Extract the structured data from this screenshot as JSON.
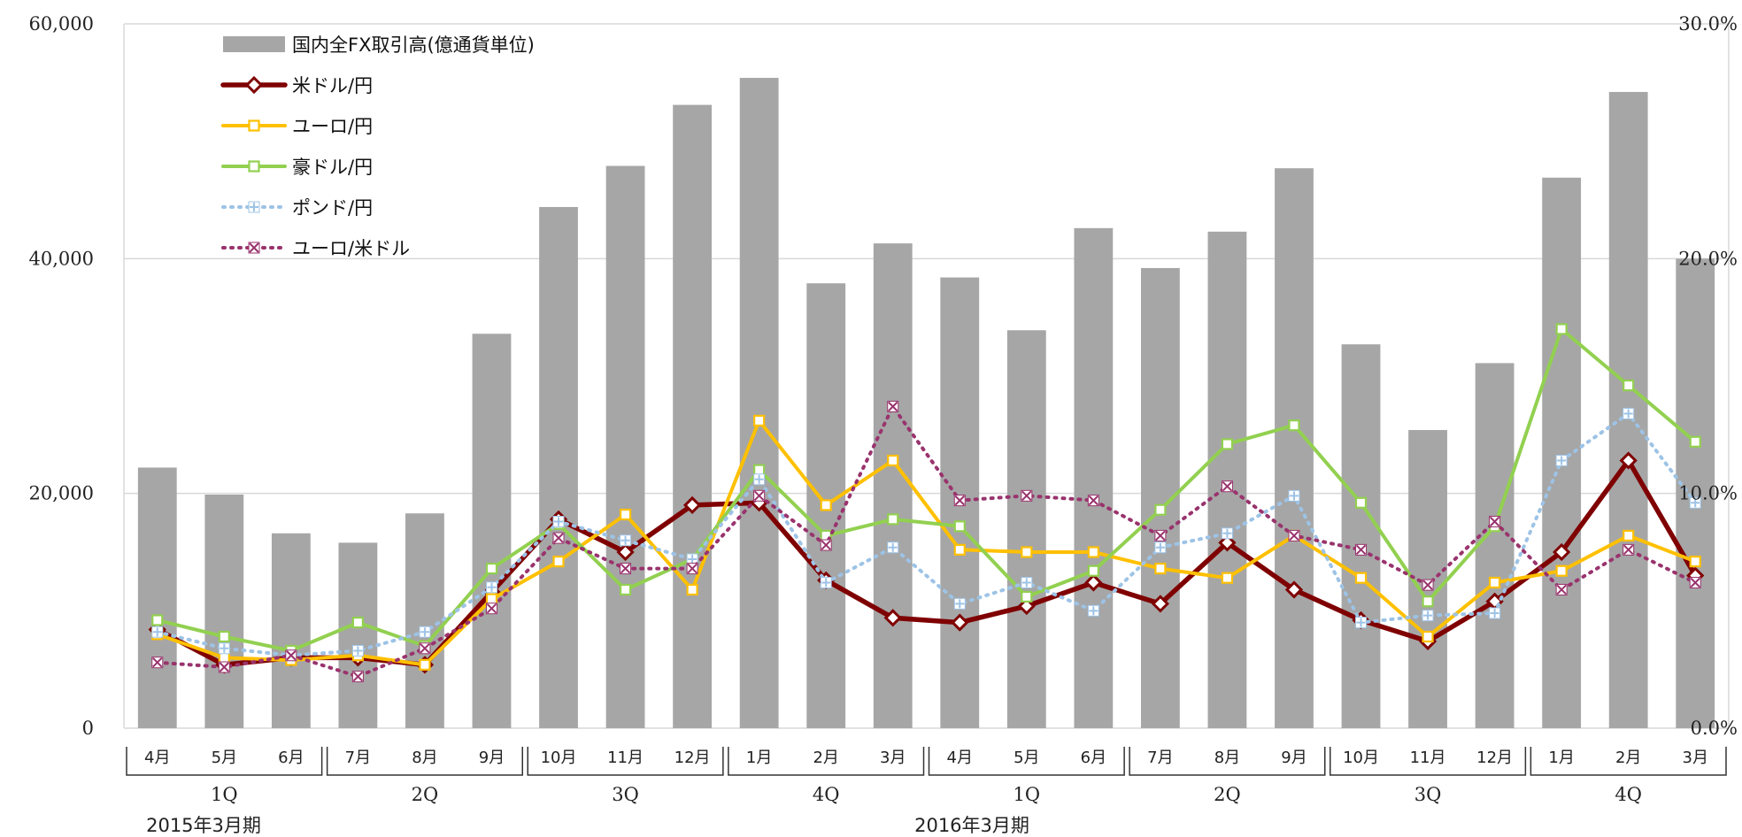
{
  "chart_data": {
    "type": "bar",
    "categories": [
      "4月",
      "5月",
      "6月",
      "7月",
      "8月",
      "9月",
      "10月",
      "11月",
      "12月",
      "1月",
      "2月",
      "3月",
      "4月",
      "5月",
      "6月",
      "7月",
      "8月",
      "9月",
      "10月",
      "11月",
      "12月",
      "1月",
      "2月",
      "3月"
    ],
    "quarters": [
      "1Q",
      "2Q",
      "3Q",
      "4Q",
      "1Q",
      "2Q",
      "3Q",
      "4Q"
    ],
    "periods": [
      "2015年3月期",
      "2016年3月期"
    ],
    "left_axis": {
      "ylim": [
        0,
        60000
      ],
      "ticks": [
        "0",
        "20,000",
        "40,000",
        "60,000"
      ]
    },
    "right_axis": {
      "ylim": [
        0,
        30
      ],
      "ticks": [
        "0.0%",
        "10.0%",
        "20.0%",
        "30.0%"
      ]
    },
    "grid": true,
    "legend_position": "top-left",
    "series": [
      {
        "name": "国内全FX取引高(億通貨単位)",
        "kind": "bar",
        "axis": "left",
        "color": "#a6a6a6",
        "values": [
          22200,
          19900,
          16600,
          15800,
          18300,
          33600,
          44400,
          47900,
          53100,
          55400,
          37900,
          41300,
          38400,
          33900,
          42600,
          39200,
          42300,
          47700,
          32700,
          25400,
          31100,
          46900,
          54200,
          40000
        ]
      },
      {
        "name": "米ドル/円",
        "kind": "line",
        "axis": "right",
        "color": "#7f0000",
        "marker": "diamond",
        "dash": "solid",
        "values": [
          4.2,
          2.7,
          3.0,
          3.0,
          2.7,
          5.8,
          8.9,
          7.5,
          9.5,
          9.6,
          6.3,
          4.7,
          4.5,
          5.2,
          6.2,
          5.3,
          7.9,
          5.9,
          4.6,
          3.7,
          5.4,
          7.5,
          11.4,
          6.5
        ]
      },
      {
        "name": "ユーロ/円",
        "kind": "line",
        "axis": "right",
        "color": "#ffc000",
        "marker": "square",
        "dash": "solid",
        "values": [
          4.0,
          3.0,
          2.9,
          3.1,
          2.7,
          5.5,
          7.1,
          9.1,
          5.9,
          13.1,
          9.5,
          11.4,
          7.6,
          7.5,
          7.5,
          6.8,
          6.4,
          8.2,
          6.4,
          3.9,
          6.2,
          6.7,
          8.2,
          7.1
        ]
      },
      {
        "name": "豪ドル/円",
        "kind": "line",
        "axis": "right",
        "color": "#92d050",
        "marker": "square",
        "dash": "solid",
        "values": [
          4.6,
          3.9,
          3.3,
          4.5,
          3.5,
          6.8,
          8.7,
          5.9,
          7.2,
          11.0,
          8.2,
          8.9,
          8.6,
          5.6,
          6.7,
          9.3,
          12.1,
          12.9,
          9.6,
          5.4,
          8.6,
          17.0,
          14.6,
          12.2
        ]
      },
      {
        "name": "ポンド/円",
        "kind": "line",
        "axis": "right",
        "color": "#9dc3e6",
        "marker": "plus",
        "dash": "dotted",
        "values": [
          4.1,
          3.4,
          3.1,
          3.3,
          4.1,
          6.0,
          8.8,
          8.0,
          7.2,
          10.6,
          6.2,
          7.7,
          5.3,
          6.2,
          5.0,
          7.7,
          8.3,
          9.9,
          4.5,
          4.8,
          4.9,
          11.4,
          13.4,
          9.6
        ]
      },
      {
        "name": "ユーロ/米ドル",
        "kind": "line",
        "axis": "right",
        "color": "#99336d",
        "marker": "cross",
        "dash": "dotted",
        "values": [
          2.8,
          2.6,
          3.1,
          2.2,
          3.4,
          5.1,
          8.1,
          6.8,
          6.8,
          9.9,
          7.8,
          13.7,
          9.7,
          9.9,
          9.7,
          8.2,
          10.3,
          8.2,
          7.6,
          6.1,
          8.8,
          5.9,
          7.6,
          6.2
        ]
      }
    ]
  }
}
